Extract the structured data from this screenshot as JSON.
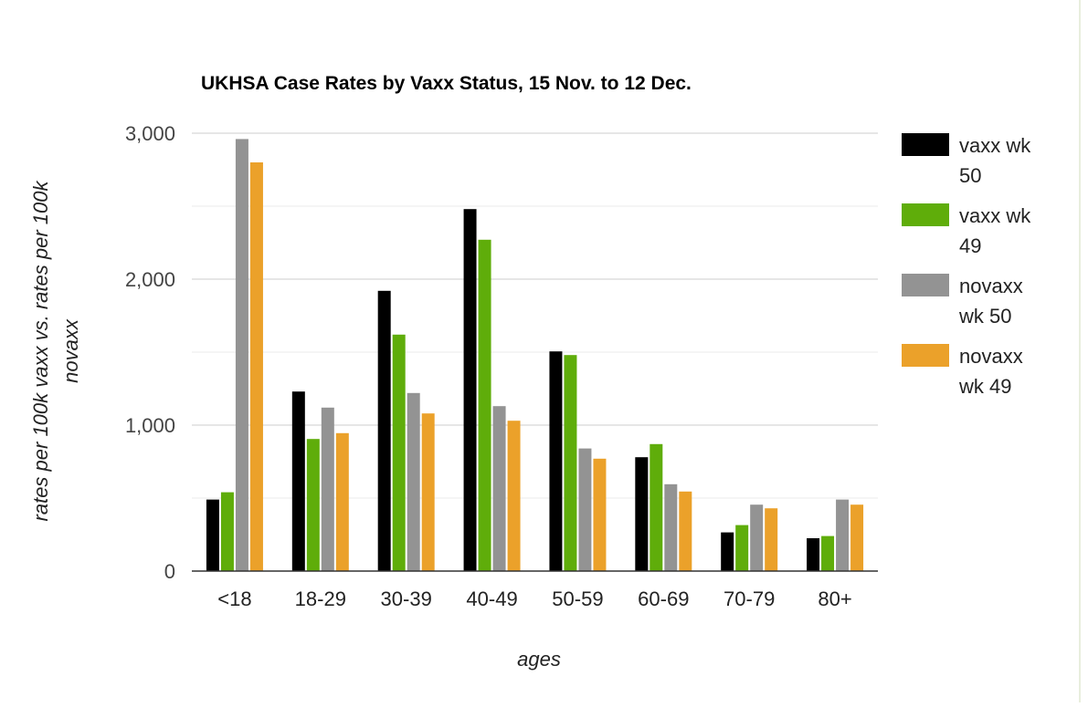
{
  "chart_data": {
    "type": "bar",
    "title": "UKHSA Case Rates by Vaxx Status, 15 Nov. to 12 Dec.",
    "xlabel": "ages",
    "ylabel_lines": [
      "rates per 100k vaxx vs. rates per 100k",
      "novaxx"
    ],
    "categories": [
      "<18",
      "18-29",
      "30-39",
      "40-49",
      "50-59",
      "60-69",
      "70-79",
      "80+"
    ],
    "ylim": [
      0,
      3000
    ],
    "yticks": [
      0,
      1000,
      2000,
      3000
    ],
    "ytick_labels": [
      "0",
      "1,000",
      "2,000",
      "3,000"
    ],
    "minor_gridlines": [
      500,
      1500,
      2500
    ],
    "grid": true,
    "legend_position": "right",
    "series": [
      {
        "name_lines": [
          "vaxx wk",
          "50"
        ],
        "color": "#000000",
        "values": [
          490,
          1230,
          1920,
          2480,
          1505,
          780,
          265,
          225
        ]
      },
      {
        "name_lines": [
          "vaxx wk",
          "49"
        ],
        "color": "#5fad0a",
        "values": [
          540,
          905,
          1620,
          2270,
          1480,
          870,
          315,
          240
        ]
      },
      {
        "name_lines": [
          "novaxx",
          "wk 50"
        ],
        "color": "#939393",
        "values": [
          2960,
          1120,
          1220,
          1130,
          840,
          595,
          455,
          490
        ]
      },
      {
        "name_lines": [
          "novaxx",
          "wk 49"
        ],
        "color": "#eba12a",
        "values": [
          2800,
          945,
          1080,
          1030,
          770,
          545,
          430,
          455
        ]
      }
    ]
  }
}
